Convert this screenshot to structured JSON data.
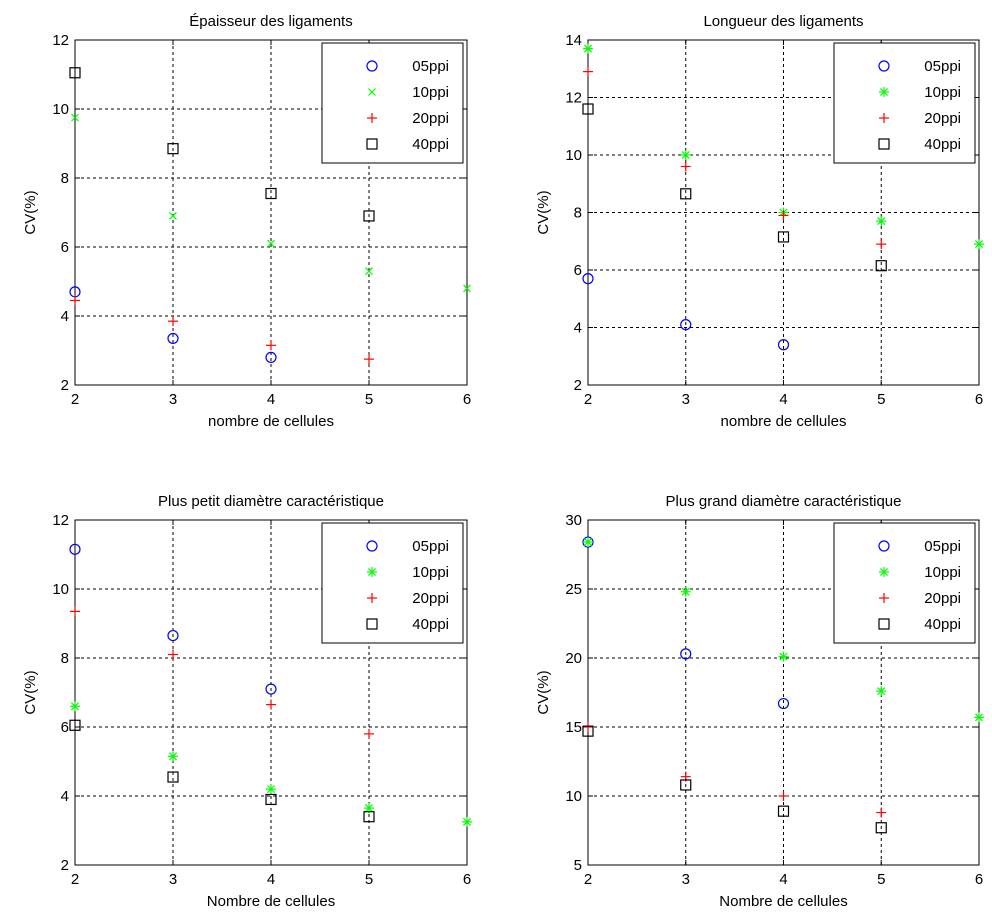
{
  "chart_data": [
    {
      "type": "scatter",
      "title": "Épaisseur des ligaments",
      "xlabel": "nombre de cellules",
      "ylabel": "CV(%)",
      "xlim": [
        2,
        6
      ],
      "ylim": [
        2,
        12
      ],
      "xticks": [
        2,
        3,
        4,
        5,
        6
      ],
      "yticks": [
        2,
        4,
        6,
        8,
        10,
        12
      ],
      "grid": true,
      "legend_position": "top-right",
      "series": [
        {
          "name": "05ppi",
          "marker": "circle",
          "color": "#0000ff",
          "x": [
            2,
            3,
            4
          ],
          "y": [
            4.7,
            3.35,
            2.8
          ]
        },
        {
          "name": "10ppi",
          "marker": "x",
          "color": "#00ff00",
          "x": [
            2,
            3,
            4,
            5,
            6
          ],
          "y": [
            9.75,
            6.9,
            6.1,
            5.3,
            4.8
          ]
        },
        {
          "name": "20ppi",
          "marker": "plus",
          "color": "#ff0000",
          "x": [
            2,
            3,
            4,
            5
          ],
          "y": [
            4.45,
            3.85,
            3.15,
            2.75
          ]
        },
        {
          "name": "40ppi",
          "marker": "square",
          "color": "#000000",
          "x": [
            2,
            3,
            4,
            5
          ],
          "y": [
            11.05,
            8.85,
            7.55,
            6.9
          ]
        }
      ]
    },
    {
      "type": "scatter",
      "title": "Longueur des ligaments",
      "xlabel": "nombre de cellules",
      "ylabel": "CV(%)",
      "xlim": [
        2,
        6
      ],
      "ylim": [
        2,
        14
      ],
      "xticks": [
        2,
        3,
        4,
        5,
        6
      ],
      "yticks": [
        2,
        4,
        6,
        8,
        10,
        12,
        14
      ],
      "grid": true,
      "legend_position": "top-right",
      "series": [
        {
          "name": "05ppi",
          "marker": "circle",
          "color": "#0000ff",
          "x": [
            2,
            3,
            4
          ],
          "y": [
            5.7,
            4.1,
            3.4
          ]
        },
        {
          "name": "10ppi",
          "marker": "asterisk",
          "color": "#00ff00",
          "x": [
            2,
            3,
            4,
            5,
            6
          ],
          "y": [
            13.7,
            10.0,
            8.0,
            7.7,
            6.9
          ]
        },
        {
          "name": "20ppi",
          "marker": "plus",
          "color": "#ff0000",
          "x": [
            2,
            3,
            4,
            5
          ],
          "y": [
            12.9,
            9.6,
            7.9,
            6.9
          ]
        },
        {
          "name": "40ppi",
          "marker": "square",
          "color": "#000000",
          "x": [
            2,
            3,
            4,
            5
          ],
          "y": [
            11.6,
            8.65,
            7.15,
            6.15
          ]
        }
      ]
    },
    {
      "type": "scatter",
      "title": "Plus petit diamètre caractéristique",
      "xlabel": "Nombre de cellules",
      "ylabel": "CV(%)",
      "xlim": [
        2,
        6
      ],
      "ylim": [
        2,
        12
      ],
      "xticks": [
        2,
        3,
        4,
        5,
        6
      ],
      "yticks": [
        2,
        4,
        6,
        8,
        10,
        12
      ],
      "grid": true,
      "legend_position": "top-right",
      "series": [
        {
          "name": "05ppi",
          "marker": "circle",
          "color": "#0000ff",
          "x": [
            2,
            3,
            4
          ],
          "y": [
            11.15,
            8.65,
            7.1
          ]
        },
        {
          "name": "10ppi",
          "marker": "asterisk",
          "color": "#00ff00",
          "x": [
            2,
            3,
            4,
            5,
            6
          ],
          "y": [
            6.6,
            5.15,
            4.2,
            3.65,
            3.25
          ]
        },
        {
          "name": "20ppi",
          "marker": "plus",
          "color": "#ff0000",
          "x": [
            2,
            3,
            4,
            5
          ],
          "y": [
            9.35,
            8.1,
            6.65,
            5.8
          ]
        },
        {
          "name": "40ppi",
          "marker": "square",
          "color": "#000000",
          "x": [
            2,
            3,
            4,
            5
          ],
          "y": [
            6.05,
            4.55,
            3.9,
            3.4
          ]
        }
      ]
    },
    {
      "type": "scatter",
      "title": "Plus grand diamètre caractéristique",
      "xlabel": "Nombre de cellules",
      "ylabel": "CV(%)",
      "xlim": [
        2,
        6
      ],
      "ylim": [
        5,
        30
      ],
      "xticks": [
        2,
        3,
        4,
        5,
        6
      ],
      "yticks": [
        5,
        10,
        15,
        20,
        25,
        30
      ],
      "grid": true,
      "legend_position": "top-right",
      "series": [
        {
          "name": "05ppi",
          "marker": "circle",
          "color": "#0000ff",
          "x": [
            2,
            3,
            4
          ],
          "y": [
            28.4,
            20.3,
            16.7
          ]
        },
        {
          "name": "10ppi",
          "marker": "asterisk",
          "color": "#00ff00",
          "x": [
            2,
            3,
            4,
            5,
            6
          ],
          "y": [
            28.4,
            24.8,
            20.1,
            17.6,
            15.7
          ]
        },
        {
          "name": "20ppi",
          "marker": "plus",
          "color": "#ff0000",
          "x": [
            2,
            3,
            4,
            5
          ],
          "y": [
            15.0,
            11.4,
            10.0,
            8.8
          ]
        },
        {
          "name": "40ppi",
          "marker": "square",
          "color": "#000000",
          "x": [
            2,
            3,
            4,
            5
          ],
          "y": [
            14.7,
            10.8,
            8.9,
            7.7
          ]
        }
      ]
    }
  ]
}
